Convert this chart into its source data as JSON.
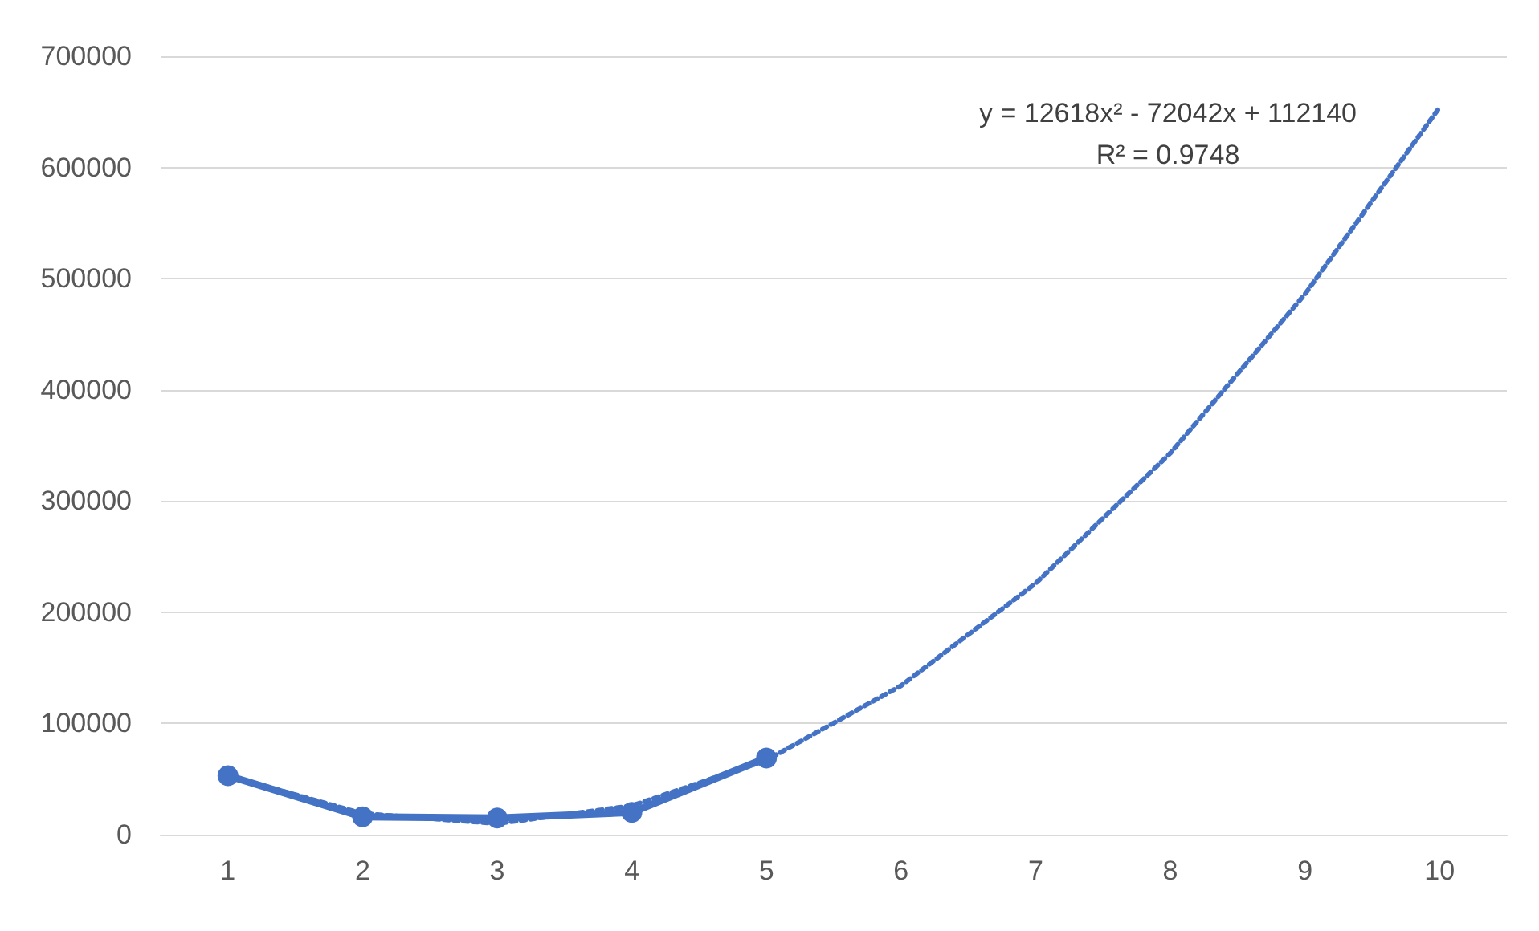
{
  "chart_data": {
    "type": "line",
    "categories": [
      "1",
      "2",
      "3",
      "4",
      "5",
      "6",
      "7",
      "8",
      "9",
      "10"
    ],
    "series": [
      {
        "color": "#4472c4",
        "values": [
          53000,
          16000,
          15000,
          20000,
          69000,
          null,
          null,
          null,
          null,
          null
        ],
        "marker": "circle",
        "line_style": "solid"
      },
      {
        "color": "#4472c4",
        "values": [
          53000,
          19000,
          10000,
          26000,
          67000,
          134000,
          226000,
          343000,
          486000,
          654000
        ],
        "marker": "none",
        "line_style": "dotted"
      }
    ],
    "ylim": [
      0,
      700000
    ],
    "yticks": [
      0,
      100000,
      200000,
      300000,
      400000,
      500000,
      600000,
      700000
    ],
    "grid": "y",
    "annotations": [
      "y = 12618x² - 72042x + 112140",
      "R² = 0.9748"
    ]
  }
}
